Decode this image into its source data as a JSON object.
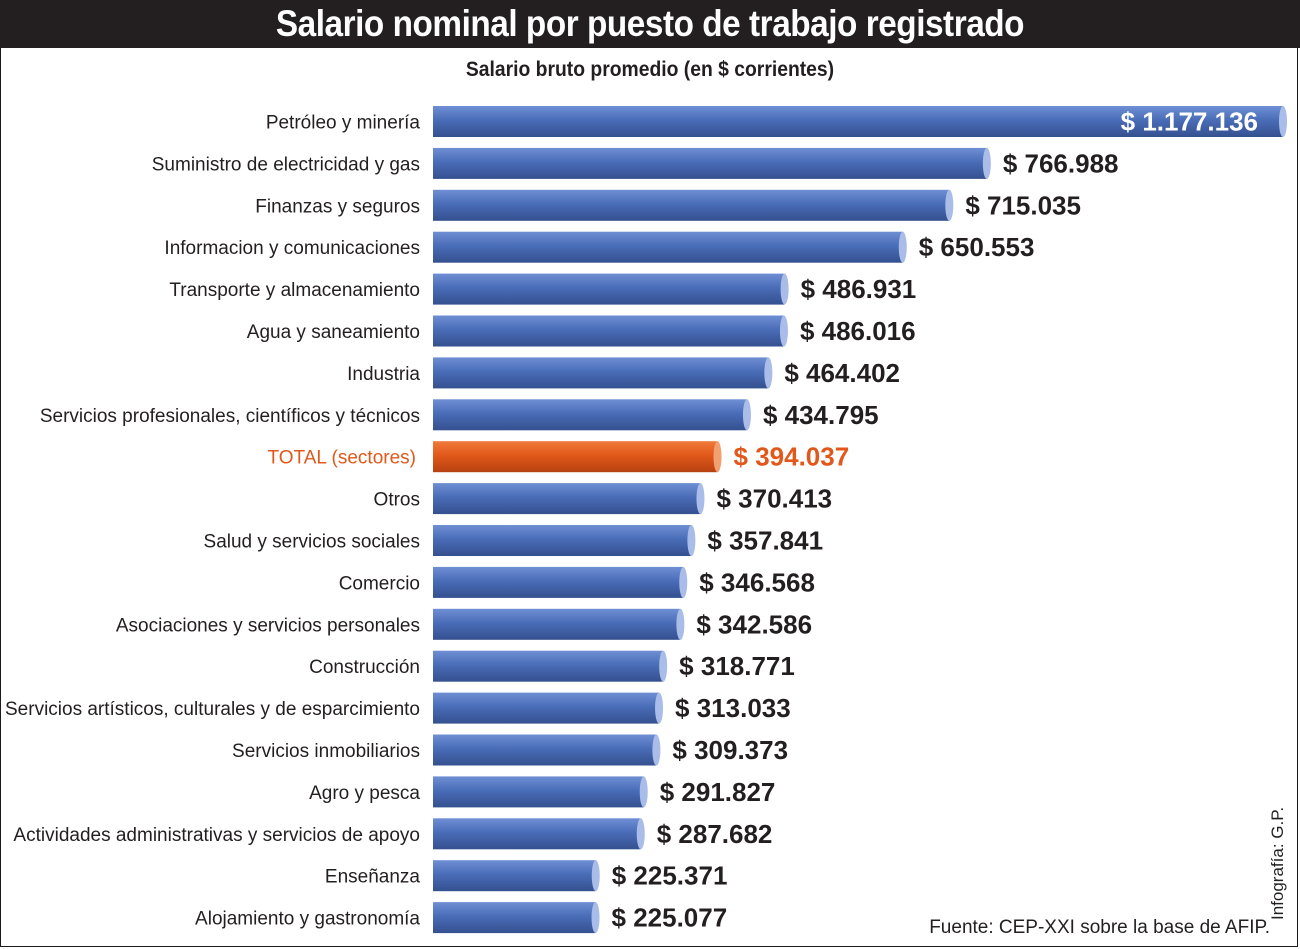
{
  "title": "Salario nominal por puesto de trabajo registrado",
  "subtitle": "Salario bruto promedio (en $ corrientes)",
  "source": "Fuente: CEP-XXI sobre la base de AFIP.",
  "credit": "Infografía: G.P.",
  "colors": {
    "bar": "#4a6db8",
    "bar_highlight": "#e1581a",
    "label_highlight": "#e1581a",
    "text": "#231f20",
    "value_inside": "#ffffff",
    "title_background": "#231f20"
  },
  "chart_data": {
    "type": "bar",
    "orientation": "horizontal",
    "title": "Salario nominal por puesto de trabajo registrado",
    "subtitle": "Salario bruto promedio (en $ corrientes)",
    "xlim": [
      0,
      1177136
    ],
    "grid": false,
    "legend": false,
    "categories": [
      "Petróleo y minería",
      "Suministro de electricidad y gas",
      "Finanzas y seguros",
      "Informacion y comunicaciones",
      "Transporte y almacenamiento",
      "Agua y saneamiento",
      "Industria",
      "Servicios profesionales, científicos y técnicos",
      "TOTAL (sectores)",
      "Otros",
      "Salud y servicios sociales",
      "Comercio",
      "Asociaciones y servicios personales",
      "Construcción",
      "Servicios artísticos, culturales y de esparcimiento",
      "Servicios inmobiliarios",
      "Agro y pesca",
      "Actividades administrativas y servicios de apoyo",
      "Enseñanza",
      "Alojamiento y gastronomía"
    ],
    "values": [
      1177136,
      766988,
      715035,
      650553,
      486931,
      486016,
      464402,
      434795,
      394037,
      370413,
      357841,
      346568,
      342586,
      318771,
      313033,
      309373,
      291827,
      287682,
      225371,
      225077
    ],
    "value_labels": [
      "$ 1.177.136",
      "$ 766.988",
      "$ 715.035",
      "$ 650.553",
      "$ 486.931",
      "$ 486.016",
      "$ 464.402",
      "$ 434.795",
      "$ 394.037",
      "$ 370.413",
      "$ 357.841",
      "$ 346.568",
      "$ 342.586",
      "$ 318.771",
      "$ 313.033",
      "$ 309.373",
      "$ 291.827",
      "$ 287.682",
      "$ 225.371",
      "$ 225.077"
    ],
    "highlight_category": "TOTAL (sectores)"
  }
}
